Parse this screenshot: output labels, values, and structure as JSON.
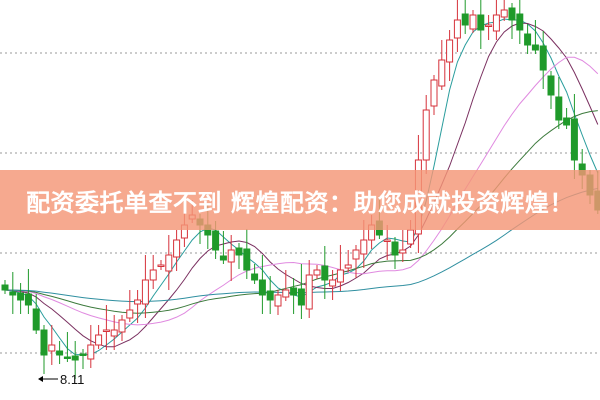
{
  "chart_data": {
    "type": "candlestick",
    "title": "",
    "xlabel": "",
    "ylabel": "",
    "ylim": [
      7.82,
      11.82
    ],
    "grid": {
      "horizontal": true,
      "style": "dotted",
      "levels": [
        8.29,
        9.29,
        10.29,
        11.29
      ]
    },
    "low_annotation": {
      "label": "8.11",
      "value": 8.11
    },
    "close": [
      8.92,
      8.87,
      8.82,
      8.77,
      8.52,
      8.27,
      8.37,
      8.27,
      8.24,
      8.22,
      8.27,
      8.37,
      8.47,
      8.52,
      8.52,
      8.62,
      8.72,
      8.82,
      9.02,
      9.12,
      9.17,
      9.27,
      9.42,
      9.57,
      9.67,
      9.57,
      9.47,
      9.32,
      9.22,
      9.32,
      9.27,
      9.12,
      9.02,
      8.87,
      8.82,
      8.87,
      8.92,
      8.87,
      8.77,
      9.07,
      9.12,
      9.02,
      9.02,
      9.12,
      9.17,
      9.32,
      9.42,
      9.57,
      9.47,
      9.42,
      9.27,
      9.32,
      9.52,
      10.22,
      10.72,
      11.02,
      11.22,
      11.42,
      11.62,
      11.57,
      11.67,
      11.52,
      11.57,
      11.67,
      11.72,
      11.62,
      11.52,
      11.37,
      11.32,
      11.12,
      10.87,
      10.62,
      10.57,
      10.22,
      10.07,
      9.87,
      9.72
    ],
    "moving_averages": [
      {
        "period": 5,
        "color": "#2a9d9d"
      },
      {
        "period": 10,
        "color": "#7a3060"
      },
      {
        "period": 20,
        "color": "#e08ae0"
      },
      {
        "period": 30,
        "color": "#3c7a3c"
      },
      {
        "period": 60,
        "color": "#2f8fa0"
      }
    ],
    "colors": {
      "up": "#d6313a",
      "down": "#1f9a2a",
      "grid": "#999999"
    }
  },
  "banner": {
    "text": "配资委托单查不到 辉煌配资：助您成就投资辉煌！"
  }
}
